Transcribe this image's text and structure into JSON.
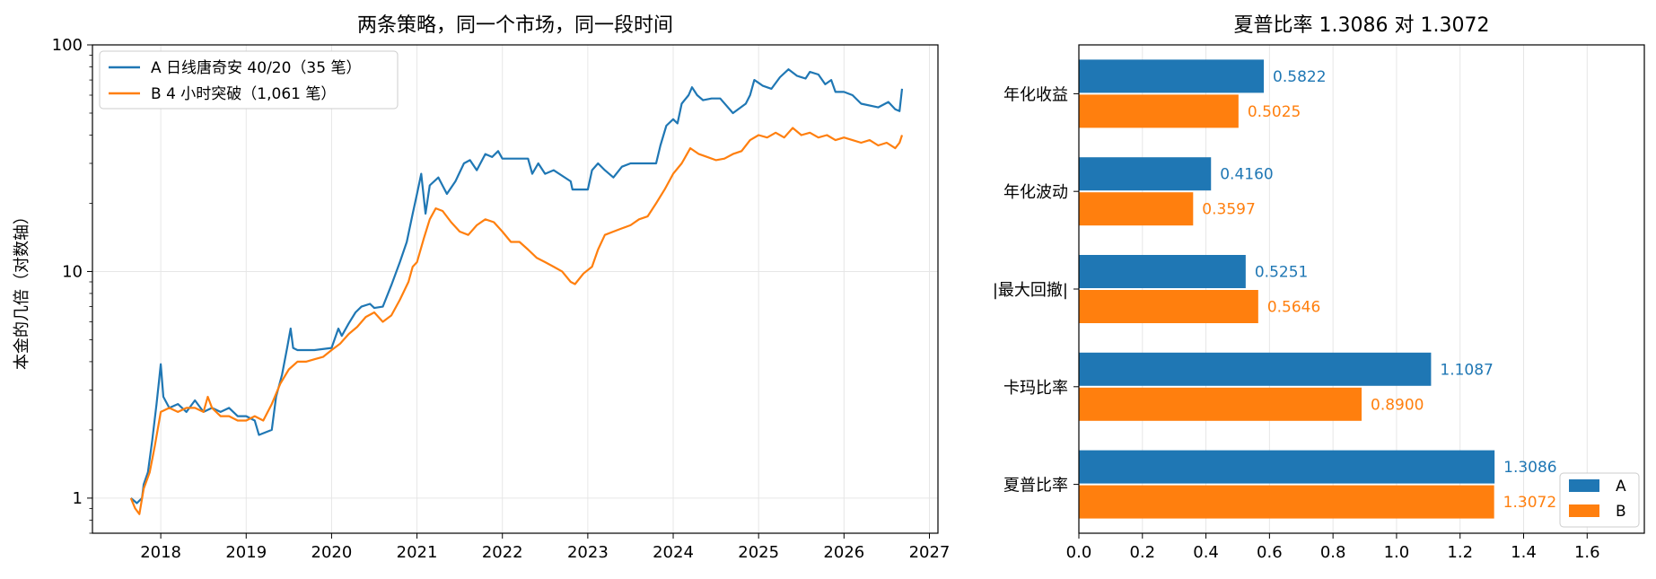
{
  "chart_data": [
    {
      "type": "line",
      "title": "两条策略，同一个市场，同一段时间",
      "ylabel": "本金的几倍（对数轴）",
      "xlabel": "",
      "y_scale": "log",
      "ylim": [
        0.7,
        100
      ],
      "xlim": [
        2017.2,
        2027.1
      ],
      "x_ticks": [
        2018,
        2019,
        2020,
        2021,
        2022,
        2023,
        2024,
        2025,
        2026,
        2027
      ],
      "x_tick_labels": [
        "2018",
        "2019",
        "2020",
        "2021",
        "2022",
        "2023",
        "2024",
        "2025",
        "2026",
        "2027"
      ],
      "y_ticks": [
        1,
        10,
        100
      ],
      "y_tick_labels": [
        "1",
        "10",
        "100"
      ],
      "grid": true,
      "legend_position": "top-left",
      "series": [
        {
          "name": "A 日线唐奇安 40/20（35 笔）",
          "color": "#1f77b4",
          "points": [
            [
              2017.65,
              1.0
            ],
            [
              2017.72,
              0.95
            ],
            [
              2017.78,
              1.0
            ],
            [
              2017.8,
              1.15
            ],
            [
              2017.85,
              1.3
            ],
            [
              2017.9,
              1.8
            ],
            [
              2017.95,
              2.6
            ],
            [
              2017.98,
              3.3
            ],
            [
              2018.0,
              3.9
            ],
            [
              2018.03,
              2.8
            ],
            [
              2018.1,
              2.5
            ],
            [
              2018.2,
              2.6
            ],
            [
              2018.3,
              2.4
            ],
            [
              2018.4,
              2.7
            ],
            [
              2018.5,
              2.4
            ],
            [
              2018.6,
              2.5
            ],
            [
              2018.7,
              2.4
            ],
            [
              2018.8,
              2.5
            ],
            [
              2018.9,
              2.3
            ],
            [
              2019.0,
              2.3
            ],
            [
              2019.1,
              2.2
            ],
            [
              2019.15,
              1.9
            ],
            [
              2019.3,
              2.0
            ],
            [
              2019.35,
              2.8
            ],
            [
              2019.42,
              3.5
            ],
            [
              2019.48,
              4.6
            ],
            [
              2019.52,
              5.6
            ],
            [
              2019.55,
              4.6
            ],
            [
              2019.6,
              4.5
            ],
            [
              2019.8,
              4.5
            ],
            [
              2020.0,
              4.6
            ],
            [
              2020.08,
              5.6
            ],
            [
              2020.12,
              5.2
            ],
            [
              2020.2,
              5.9
            ],
            [
              2020.28,
              6.6
            ],
            [
              2020.35,
              7.0
            ],
            [
              2020.45,
              7.2
            ],
            [
              2020.5,
              6.9
            ],
            [
              2020.6,
              7.0
            ],
            [
              2020.7,
              8.7
            ],
            [
              2020.8,
              11.0
            ],
            [
              2020.88,
              13.5
            ],
            [
              2020.95,
              18.0
            ],
            [
              2021.0,
              22.0
            ],
            [
              2021.05,
              27.0
            ],
            [
              2021.1,
              18.0
            ],
            [
              2021.15,
              24.0
            ],
            [
              2021.25,
              26.0
            ],
            [
              2021.35,
              22.0
            ],
            [
              2021.45,
              25.0
            ],
            [
              2021.55,
              30.0
            ],
            [
              2021.62,
              31.0
            ],
            [
              2021.7,
              28.0
            ],
            [
              2021.8,
              33.0
            ],
            [
              2021.88,
              32.0
            ],
            [
              2021.95,
              34.0
            ],
            [
              2022.0,
              31.5
            ],
            [
              2022.3,
              31.5
            ],
            [
              2022.35,
              27.0
            ],
            [
              2022.42,
              30.0
            ],
            [
              2022.5,
              27.0
            ],
            [
              2022.6,
              28.0
            ],
            [
              2022.8,
              25.0
            ],
            [
              2022.82,
              23.0
            ],
            [
              2023.0,
              23.0
            ],
            [
              2023.05,
              28.0
            ],
            [
              2023.12,
              30.0
            ],
            [
              2023.2,
              28.0
            ],
            [
              2023.3,
              26.0
            ],
            [
              2023.4,
              29.0
            ],
            [
              2023.5,
              30.0
            ],
            [
              2023.8,
              30.0
            ],
            [
              2023.85,
              36.0
            ],
            [
              2023.92,
              44.0
            ],
            [
              2024.0,
              47.0
            ],
            [
              2024.05,
              45.0
            ],
            [
              2024.1,
              55.0
            ],
            [
              2024.18,
              60.0
            ],
            [
              2024.22,
              65.0
            ],
            [
              2024.28,
              60.0
            ],
            [
              2024.35,
              57.0
            ],
            [
              2024.45,
              58.0
            ],
            [
              2024.55,
              58.0
            ],
            [
              2024.7,
              50.0
            ],
            [
              2024.85,
              55.0
            ],
            [
              2024.9,
              60.0
            ],
            [
              2024.95,
              70.0
            ],
            [
              2025.0,
              68.0
            ],
            [
              2025.05,
              66.0
            ],
            [
              2025.15,
              64.0
            ],
            [
              2025.25,
              72.0
            ],
            [
              2025.35,
              78.0
            ],
            [
              2025.45,
              73.0
            ],
            [
              2025.55,
              71.0
            ],
            [
              2025.6,
              76.0
            ],
            [
              2025.7,
              74.0
            ],
            [
              2025.78,
              67.0
            ],
            [
              2025.85,
              70.0
            ],
            [
              2025.9,
              62.0
            ],
            [
              2026.0,
              62.0
            ],
            [
              2026.1,
              60.0
            ],
            [
              2026.2,
              55.0
            ],
            [
              2026.4,
              53.0
            ],
            [
              2026.52,
              56.0
            ],
            [
              2026.6,
              52.0
            ],
            [
              2026.65,
              51.0
            ],
            [
              2026.68,
              64.0
            ]
          ]
        },
        {
          "name": "B 4 小时突破（1,061 笔）",
          "color": "#ff7f0e",
          "points": [
            [
              2017.65,
              1.0
            ],
            [
              2017.7,
              0.9
            ],
            [
              2017.75,
              0.85
            ],
            [
              2017.8,
              1.1
            ],
            [
              2017.87,
              1.3
            ],
            [
              2017.93,
              1.7
            ],
            [
              2018.0,
              2.4
            ],
            [
              2018.1,
              2.5
            ],
            [
              2018.2,
              2.4
            ],
            [
              2018.3,
              2.5
            ],
            [
              2018.4,
              2.5
            ],
            [
              2018.5,
              2.4
            ],
            [
              2018.55,
              2.8
            ],
            [
              2018.6,
              2.5
            ],
            [
              2018.7,
              2.3
            ],
            [
              2018.8,
              2.3
            ],
            [
              2018.9,
              2.2
            ],
            [
              2019.0,
              2.2
            ],
            [
              2019.1,
              2.3
            ],
            [
              2019.2,
              2.2
            ],
            [
              2019.3,
              2.6
            ],
            [
              2019.4,
              3.2
            ],
            [
              2019.5,
              3.7
            ],
            [
              2019.6,
              4.0
            ],
            [
              2019.7,
              4.0
            ],
            [
              2019.8,
              4.1
            ],
            [
              2019.9,
              4.2
            ],
            [
              2020.0,
              4.5
            ],
            [
              2020.1,
              4.8
            ],
            [
              2020.2,
              5.3
            ],
            [
              2020.3,
              5.7
            ],
            [
              2020.4,
              6.3
            ],
            [
              2020.5,
              6.6
            ],
            [
              2020.6,
              6.0
            ],
            [
              2020.7,
              6.4
            ],
            [
              2020.8,
              7.5
            ],
            [
              2020.9,
              9.0
            ],
            [
              2020.95,
              10.5
            ],
            [
              2021.0,
              11.0
            ],
            [
              2021.08,
              14.0
            ],
            [
              2021.15,
              17.0
            ],
            [
              2021.22,
              19.0
            ],
            [
              2021.3,
              18.5
            ],
            [
              2021.4,
              16.5
            ],
            [
              2021.5,
              15.0
            ],
            [
              2021.6,
              14.5
            ],
            [
              2021.7,
              16.0
            ],
            [
              2021.8,
              17.0
            ],
            [
              2021.9,
              16.5
            ],
            [
              2022.0,
              15.0
            ],
            [
              2022.1,
              13.5
            ],
            [
              2022.2,
              13.5
            ],
            [
              2022.3,
              12.5
            ],
            [
              2022.4,
              11.5
            ],
            [
              2022.5,
              11.0
            ],
            [
              2022.6,
              10.5
            ],
            [
              2022.7,
              10.0
            ],
            [
              2022.8,
              9.0
            ],
            [
              2022.85,
              8.8
            ],
            [
              2022.95,
              9.8
            ],
            [
              2023.05,
              10.5
            ],
            [
              2023.12,
              12.5
            ],
            [
              2023.2,
              14.5
            ],
            [
              2023.3,
              15.0
            ],
            [
              2023.4,
              15.5
            ],
            [
              2023.5,
              16.0
            ],
            [
              2023.6,
              17.0
            ],
            [
              2023.7,
              17.5
            ],
            [
              2023.8,
              20.0
            ],
            [
              2023.9,
              23.0
            ],
            [
              2024.0,
              27.0
            ],
            [
              2024.1,
              30.0
            ],
            [
              2024.2,
              35.0
            ],
            [
              2024.3,
              33.0
            ],
            [
              2024.4,
              32.0
            ],
            [
              2024.5,
              31.0
            ],
            [
              2024.6,
              31.5
            ],
            [
              2024.7,
              33.0
            ],
            [
              2024.8,
              34.0
            ],
            [
              2024.9,
              38.0
            ],
            [
              2025.0,
              40.0
            ],
            [
              2025.1,
              39.0
            ],
            [
              2025.2,
              41.0
            ],
            [
              2025.3,
              39.0
            ],
            [
              2025.4,
              43.0
            ],
            [
              2025.5,
              40.0
            ],
            [
              2025.6,
              41.0
            ],
            [
              2025.7,
              39.0
            ],
            [
              2025.8,
              40.0
            ],
            [
              2025.9,
              38.0
            ],
            [
              2026.0,
              39.0
            ],
            [
              2026.1,
              38.0
            ],
            [
              2026.2,
              37.0
            ],
            [
              2026.3,
              38.0
            ],
            [
              2026.4,
              36.0
            ],
            [
              2026.5,
              37.0
            ],
            [
              2026.6,
              35.0
            ],
            [
              2026.65,
              37.0
            ],
            [
              2026.68,
              40.0
            ]
          ]
        }
      ]
    },
    {
      "type": "bar",
      "orientation": "horizontal",
      "title": "夏普比率 1.3086 对 1.3072",
      "xlabel": "",
      "ylabel": "",
      "xlim": [
        0,
        1.78
      ],
      "x_ticks": [
        0,
        0.2,
        0.4,
        0.6,
        0.8,
        1.0,
        1.2,
        1.4,
        1.6
      ],
      "x_tick_labels": [
        "0.0",
        "0.2",
        "0.4",
        "0.6",
        "0.8",
        "1.0",
        "1.2",
        "1.4",
        "1.6"
      ],
      "grid": true,
      "legend_position": "bottom-right",
      "categories": [
        "年化收益",
        "年化波动",
        "|最大回撤|",
        "卡玛比率",
        "夏普比率"
      ],
      "series": [
        {
          "name": "A",
          "color": "#1f77b4",
          "values": [
            0.5822,
            0.416,
            0.5251,
            1.1087,
            1.3086
          ],
          "labels": [
            "0.5822",
            "0.4160",
            "0.5251",
            "1.1087",
            "1.3086"
          ]
        },
        {
          "name": "B",
          "color": "#ff7f0e",
          "values": [
            0.5025,
            0.3597,
            0.5646,
            0.89,
            1.3072
          ],
          "labels": [
            "0.5025",
            "0.3597",
            "0.5646",
            "0.8900",
            "1.3072"
          ]
        }
      ]
    }
  ]
}
